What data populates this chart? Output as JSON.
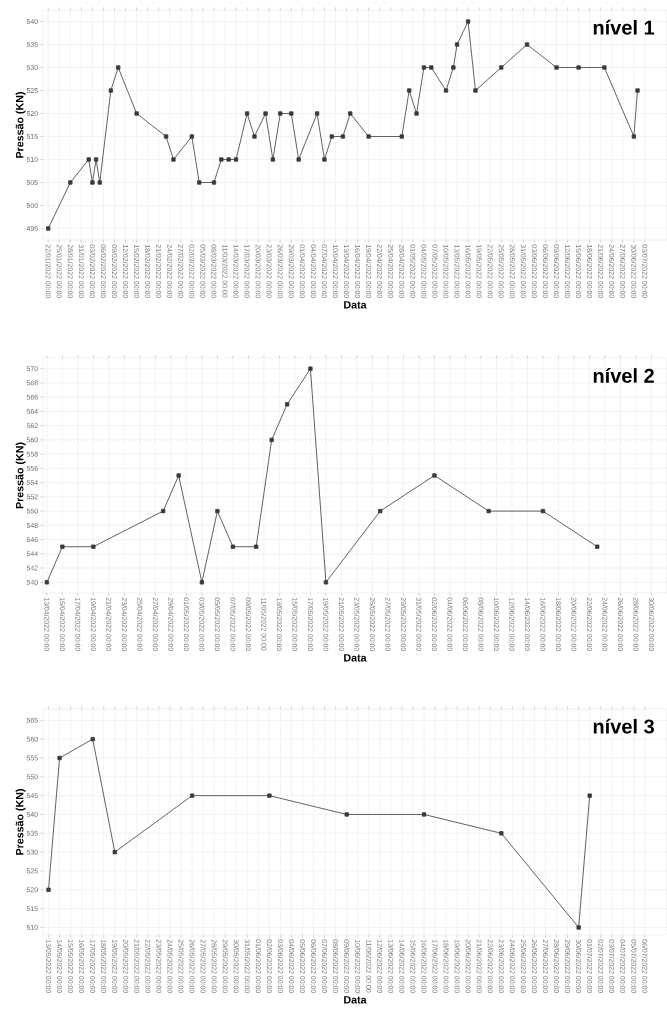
{
  "chart_data": [
    {
      "type": "line",
      "xlabel": "Data",
      "ylabel": "Pressão (KN)",
      "annotations": [
        "nível 1"
      ],
      "color": "#3a3a3a",
      "marker": "square",
      "line_style": "solid",
      "grid": true,
      "x": [
        "2022-01-22",
        "2022-01-28",
        "2022-02-02",
        "2022-02-03",
        "2022-02-04",
        "2022-02-05",
        "2022-02-08",
        "2022-02-10",
        "2022-02-15",
        "2022-02-23",
        "2022-02-25",
        "2022-03-02",
        "2022-03-04",
        "2022-03-08",
        "2022-03-10",
        "2022-03-12",
        "2022-03-14",
        "2022-03-17",
        "2022-03-19",
        "2022-03-22",
        "2022-03-24",
        "2022-03-26",
        "2022-03-29",
        "2022-03-31",
        "2022-04-05",
        "2022-04-07",
        "2022-04-09",
        "2022-04-12",
        "2022-04-14",
        "2022-04-19",
        "2022-04-28",
        "2022-04-30",
        "2022-05-02",
        "2022-05-04",
        "2022-05-06",
        "2022-05-10",
        "2022-05-12",
        "2022-05-13",
        "2022-05-16",
        "2022-05-18",
        "2022-05-25",
        "2022-06-01",
        "2022-06-09",
        "2022-06-15",
        "2022-06-22",
        "2022-06-30",
        "2022-07-01"
      ],
      "values": [
        495,
        505,
        510,
        505,
        510,
        505,
        525,
        530,
        520,
        515,
        510,
        515,
        505,
        505,
        510,
        510,
        510,
        520,
        515,
        520,
        510,
        520,
        520,
        510,
        520,
        510,
        515,
        515,
        520,
        515,
        515,
        525,
        520,
        530,
        530,
        525,
        530,
        535,
        540,
        525,
        530,
        535,
        530,
        530,
        530,
        515,
        525
      ],
      "xlim": [
        "2022-01-20T14:00",
        "2022-07-09"
      ],
      "ylim": [
        492.5,
        542.5
      ],
      "yticks": [
        495,
        500,
        505,
        510,
        515,
        520,
        525,
        530,
        535,
        540
      ],
      "xticks": [
        {
          "value": "2022-01-22",
          "label": "22/01/2022 00:00"
        },
        {
          "value": "2022-01-25",
          "label": "25/01/2022 00:00"
        },
        {
          "value": "2022-01-28",
          "label": "28/01/2022 00:00"
        },
        {
          "value": "2022-01-31",
          "label": "31/01/2022 00:00"
        },
        {
          "value": "2022-02-03",
          "label": "03/02/2022 00:00"
        },
        {
          "value": "2022-02-06",
          "label": "06/02/2022 00:00"
        },
        {
          "value": "2022-02-09",
          "label": "09/02/2022 00:00"
        },
        {
          "value": "2022-02-12",
          "label": "12/02/2022 00:00"
        },
        {
          "value": "2022-02-15",
          "label": "15/02/2022 00:00"
        },
        {
          "value": "2022-02-18",
          "label": "18/02/2022 00:00"
        },
        {
          "value": "2022-02-21",
          "label": "21/02/2022 00:00"
        },
        {
          "value": "2022-02-24",
          "label": "24/02/2022 00:00"
        },
        {
          "value": "2022-02-27",
          "label": "27/02/2022 00:00"
        },
        {
          "value": "2022-03-02",
          "label": "02/03/2022 00:00"
        },
        {
          "value": "2022-03-05",
          "label": "05/03/2022 00:00"
        },
        {
          "value": "2022-03-08",
          "label": "08/03/2022 00:00"
        },
        {
          "value": "2022-03-11",
          "label": "11/03/2022 00:00"
        },
        {
          "value": "2022-03-14",
          "label": "14/03/2022 00:00"
        },
        {
          "value": "2022-03-17",
          "label": "17/03/2022 00:00"
        },
        {
          "value": "2022-03-20",
          "label": "20/03/2022 00:00"
        },
        {
          "value": "2022-03-23",
          "label": "23/03/2022 00:00"
        },
        {
          "value": "2022-03-26",
          "label": "26/03/2022 00:00"
        },
        {
          "value": "2022-03-29",
          "label": "29/03/2022 00:00"
        },
        {
          "value": "2022-04-01",
          "label": "01/04/2022 00:00"
        },
        {
          "value": "2022-04-04",
          "label": "04/04/2022 00:00"
        },
        {
          "value": "2022-04-07",
          "label": "07/04/2022 00:00"
        },
        {
          "value": "2022-04-10",
          "label": "10/04/2022 00:00"
        },
        {
          "value": "2022-04-13",
          "label": "13/04/2022 00:00"
        },
        {
          "value": "2022-04-16",
          "label": "16/04/2022 00:00"
        },
        {
          "value": "2022-04-19",
          "label": "19/04/2022 00:00"
        },
        {
          "value": "2022-04-22",
          "label": "22/04/2022 00:00"
        },
        {
          "value": "2022-04-25",
          "label": "25/04/2022 00:00"
        },
        {
          "value": "2022-04-28",
          "label": "28/04/2022 00:00"
        },
        {
          "value": "2022-05-01",
          "label": "01/05/2022 00:00"
        },
        {
          "value": "2022-05-04",
          "label": "04/05/2022 00:00"
        },
        {
          "value": "2022-05-07",
          "label": "07/05/2022 00:00"
        },
        {
          "value": "2022-05-10",
          "label": "10/05/2022 00:00"
        },
        {
          "value": "2022-05-13",
          "label": "13/05/2022 00:00"
        },
        {
          "value": "2022-05-16",
          "label": "16/05/2022 00:00"
        },
        {
          "value": "2022-05-19",
          "label": "19/05/2022 00:00"
        },
        {
          "value": "2022-05-22",
          "label": "22/05/2022 00:00"
        },
        {
          "value": "2022-05-25",
          "label": "25/05/2022 00:00"
        },
        {
          "value": "2022-05-28",
          "label": "28/05/2022 00:00"
        },
        {
          "value": "2022-05-31",
          "label": "31/05/2022 00:00"
        },
        {
          "value": "2022-06-03",
          "label": "03/06/2022 00:00"
        },
        {
          "value": "2022-06-06",
          "label": "06/06/2022 00:00"
        },
        {
          "value": "2022-06-09",
          "label": "09/06/2022 00:00"
        },
        {
          "value": "2022-06-12",
          "label": "12/06/2022 00:00"
        },
        {
          "value": "2022-06-15",
          "label": "15/06/2022 00:00"
        },
        {
          "value": "2022-06-18",
          "label": "18/06/2022 00:00"
        },
        {
          "value": "2022-06-21",
          "label": "21/06/2022 00:00"
        },
        {
          "value": "2022-06-24",
          "label": "24/06/2022 00:00"
        },
        {
          "value": "2022-06-27",
          "label": "27/06/2022 00:00"
        },
        {
          "value": "2022-06-30",
          "label": "30/06/2022 00:00"
        },
        {
          "value": "2022-07-03",
          "label": "03/07/2022 00:00"
        }
      ]
    },
    {
      "type": "line",
      "xlabel": "Data",
      "ylabel": "Pressão (KN)",
      "annotations": [
        "nível 2"
      ],
      "color": "#3a3a3a",
      "marker": "square",
      "line_style": "solid",
      "grid": true,
      "x": [
        "2022-04-13",
        "2022-04-15",
        "2022-04-19",
        "2022-04-28",
        "2022-04-30",
        "2022-05-03",
        "2022-05-05",
        "2022-05-07",
        "2022-05-10",
        "2022-05-12",
        "2022-05-14",
        "2022-05-17",
        "2022-05-19",
        "2022-05-26",
        "2022-06-02",
        "2022-06-09",
        "2022-06-16",
        "2022-06-23"
      ],
      "values": [
        540,
        545,
        545,
        550,
        555,
        540,
        550,
        545,
        545,
        560,
        565,
        570,
        540,
        550,
        555,
        550,
        550,
        545
      ],
      "xlim": [
        "2022-04-12T12:00",
        "2022-07-02"
      ],
      "ylim": [
        538.5,
        571.5
      ],
      "yticks": [
        540,
        542,
        544,
        546,
        548,
        550,
        552,
        554,
        556,
        558,
        560,
        562,
        564,
        566,
        568,
        570
      ],
      "xticks": [
        {
          "value": "2022-04-13",
          "label": "13/04/2022 00:00"
        },
        {
          "value": "2022-04-15",
          "label": "15/04/2022 00:00"
        },
        {
          "value": "2022-04-17",
          "label": "17/04/2022 00:00"
        },
        {
          "value": "2022-04-19",
          "label": "19/04/2022 00:00"
        },
        {
          "value": "2022-04-21",
          "label": "21/04/2022 00:00"
        },
        {
          "value": "2022-04-23",
          "label": "23/04/2022 00:00"
        },
        {
          "value": "2022-04-25",
          "label": "25/04/2022 00:00"
        },
        {
          "value": "2022-04-27",
          "label": "27/04/2022 00:00"
        },
        {
          "value": "2022-04-29",
          "label": "29/04/2022 00:00"
        },
        {
          "value": "2022-05-01",
          "label": "01/05/2022 00:00"
        },
        {
          "value": "2022-05-03",
          "label": "03/05/2022 00:00"
        },
        {
          "value": "2022-05-05",
          "label": "05/05/2022 00:00"
        },
        {
          "value": "2022-05-07",
          "label": "07/05/2022 00:00"
        },
        {
          "value": "2022-05-09",
          "label": "09/05/2022 00:00"
        },
        {
          "value": "2022-05-11",
          "label": "11/05/2022 00:00"
        },
        {
          "value": "2022-05-13",
          "label": "13/05/2022 00:00"
        },
        {
          "value": "2022-05-15",
          "label": "15/05/2022 00:00"
        },
        {
          "value": "2022-05-17",
          "label": "17/05/2022 00:00"
        },
        {
          "value": "2022-05-19",
          "label": "19/05/2022 00:00"
        },
        {
          "value": "2022-05-21",
          "label": "21/05/2022 00:00"
        },
        {
          "value": "2022-05-23",
          "label": "23/05/2022 00:00"
        },
        {
          "value": "2022-05-25",
          "label": "25/05/2022 00:00"
        },
        {
          "value": "2022-05-27",
          "label": "27/05/2022 00:00"
        },
        {
          "value": "2022-05-29",
          "label": "29/05/2022 00:00"
        },
        {
          "value": "2022-05-31",
          "label": "31/05/2022 00:00"
        },
        {
          "value": "2022-06-02",
          "label": "02/06/2022 00:00"
        },
        {
          "value": "2022-06-04",
          "label": "04/06/2022 00:00"
        },
        {
          "value": "2022-06-06",
          "label": "06/06/2022 00:00"
        },
        {
          "value": "2022-06-08",
          "label": "08/06/2022 00:00"
        },
        {
          "value": "2022-06-10",
          "label": "10/06/2022 00:00"
        },
        {
          "value": "2022-06-12",
          "label": "12/06/2022 00:00"
        },
        {
          "value": "2022-06-14",
          "label": "14/06/2022 00:00"
        },
        {
          "value": "2022-06-16",
          "label": "16/06/2022 00:00"
        },
        {
          "value": "2022-06-18",
          "label": "18/06/2022 00:00"
        },
        {
          "value": "2022-06-20",
          "label": "20/06/2022 00:00"
        },
        {
          "value": "2022-06-22",
          "label": "22/06/2022 00:00"
        },
        {
          "value": "2022-06-24",
          "label": "24/06/2022 00:00"
        },
        {
          "value": "2022-06-26",
          "label": "26/06/2022 00:00"
        },
        {
          "value": "2022-06-28",
          "label": "28/06/2022 00:00"
        },
        {
          "value": "2022-06-30",
          "label": "30/06/2022 00:00"
        }
      ]
    },
    {
      "type": "line",
      "xlabel": "Data",
      "ylabel": "Pressão (KN)",
      "annotations": [
        "nível 3"
      ],
      "color": "#3a3a3a",
      "marker": "square",
      "line_style": "solid",
      "grid": true,
      "x": [
        "2022-05-13",
        "2022-05-14",
        "2022-05-17",
        "2022-05-19",
        "2022-05-26",
        "2022-06-02",
        "2022-06-09",
        "2022-06-16",
        "2022-06-23",
        "2022-06-30",
        "2022-07-01"
      ],
      "values": [
        520,
        555,
        560,
        530,
        545,
        545,
        540,
        540,
        535,
        510,
        545
      ],
      "xlim": [
        "2022-05-12T12:00",
        "2022-07-08"
      ],
      "ylim": [
        508,
        568
      ],
      "yticks": [
        510,
        515,
        520,
        525,
        530,
        535,
        540,
        545,
        550,
        555,
        560,
        565
      ],
      "xticks": [
        {
          "value": "2022-05-13",
          "label": "13/05/2022 00:00"
        },
        {
          "value": "2022-05-14",
          "label": "14/05/2022 00:00"
        },
        {
          "value": "2022-05-15",
          "label": "15/05/2022 00:00"
        },
        {
          "value": "2022-05-16",
          "label": "16/05/2022 00:00"
        },
        {
          "value": "2022-05-17",
          "label": "17/05/2022 00:00"
        },
        {
          "value": "2022-05-18",
          "label": "18/05/2022 00:00"
        },
        {
          "value": "2022-05-19",
          "label": "19/05/2022 00:00"
        },
        {
          "value": "2022-05-20",
          "label": "20/05/2022 00:00"
        },
        {
          "value": "2022-05-21",
          "label": "21/05/2022 00:00"
        },
        {
          "value": "2022-05-22",
          "label": "22/05/2022 00:00"
        },
        {
          "value": "2022-05-23",
          "label": "23/05/2022 00:00"
        },
        {
          "value": "2022-05-24",
          "label": "24/05/2022 00:00"
        },
        {
          "value": "2022-05-25",
          "label": "25/05/2022 00:00"
        },
        {
          "value": "2022-05-26",
          "label": "26/05/2022 00:00"
        },
        {
          "value": "2022-05-27",
          "label": "27/05/2022 00:00"
        },
        {
          "value": "2022-05-28",
          "label": "28/05/2022 00:00"
        },
        {
          "value": "2022-05-29",
          "label": "29/05/2022 00:00"
        },
        {
          "value": "2022-05-30",
          "label": "30/05/2022 00:00"
        },
        {
          "value": "2022-05-31",
          "label": "31/05/2022 00:00"
        },
        {
          "value": "2022-06-01",
          "label": "01/06/2022 00:00"
        },
        {
          "value": "2022-06-02",
          "label": "02/06/2022 00:00"
        },
        {
          "value": "2022-06-03",
          "label": "03/06/2022 00:00"
        },
        {
          "value": "2022-06-04",
          "label": "04/06/2022 00:00"
        },
        {
          "value": "2022-06-05",
          "label": "05/06/2022 00:00"
        },
        {
          "value": "2022-06-06",
          "label": "06/06/2022 00:00"
        },
        {
          "value": "2022-06-07",
          "label": "07/06/2022 00:00"
        },
        {
          "value": "2022-06-08",
          "label": "08/06/2022 00:00"
        },
        {
          "value": "2022-06-09",
          "label": "09/06/2022 00:00"
        },
        {
          "value": "2022-06-10",
          "label": "10/06/2022 00:00"
        },
        {
          "value": "2022-06-11",
          "label": "11/06/2022 00:00"
        },
        {
          "value": "2022-06-12",
          "label": "12/06/2022 00:00"
        },
        {
          "value": "2022-06-13",
          "label": "13/06/2022 00:00"
        },
        {
          "value": "2022-06-14",
          "label": "14/06/2022 00:00"
        },
        {
          "value": "2022-06-15",
          "label": "15/06/2022 00:00"
        },
        {
          "value": "2022-06-16",
          "label": "16/06/2022 00:00"
        },
        {
          "value": "2022-06-17",
          "label": "17/06/2022 00:00"
        },
        {
          "value": "2022-06-18",
          "label": "18/06/2022 00:00"
        },
        {
          "value": "2022-06-19",
          "label": "19/06/2022 00:00"
        },
        {
          "value": "2022-06-20",
          "label": "20/06/2022 00:00"
        },
        {
          "value": "2022-06-21",
          "label": "21/06/2022 00:00"
        },
        {
          "value": "2022-06-22",
          "label": "22/06/2022 00:00"
        },
        {
          "value": "2022-06-23",
          "label": "23/06/2022 00:00"
        },
        {
          "value": "2022-06-24",
          "label": "24/06/2022 00:00"
        },
        {
          "value": "2022-06-25",
          "label": "25/06/2022 00:00"
        },
        {
          "value": "2022-06-26",
          "label": "26/06/2022 00:00"
        },
        {
          "value": "2022-06-27",
          "label": "27/06/2022 00:00"
        },
        {
          "value": "2022-06-28",
          "label": "28/06/2022 00:00"
        },
        {
          "value": "2022-06-29",
          "label": "29/06/2022 00:00"
        },
        {
          "value": "2022-06-30",
          "label": "30/06/2022 00:00"
        },
        {
          "value": "2022-07-01",
          "label": "01/07/2022 00:00"
        },
        {
          "value": "2022-07-02",
          "label": "02/07/2022 00:00"
        },
        {
          "value": "2022-07-03",
          "label": "03/07/2022 00:00"
        },
        {
          "value": "2022-07-04",
          "label": "04/07/2022 00:00"
        },
        {
          "value": "2022-07-05",
          "label": "05/07/2022 00:00"
        },
        {
          "value": "2022-07-06",
          "label": "06/07/2022 00:00"
        }
      ]
    }
  ]
}
